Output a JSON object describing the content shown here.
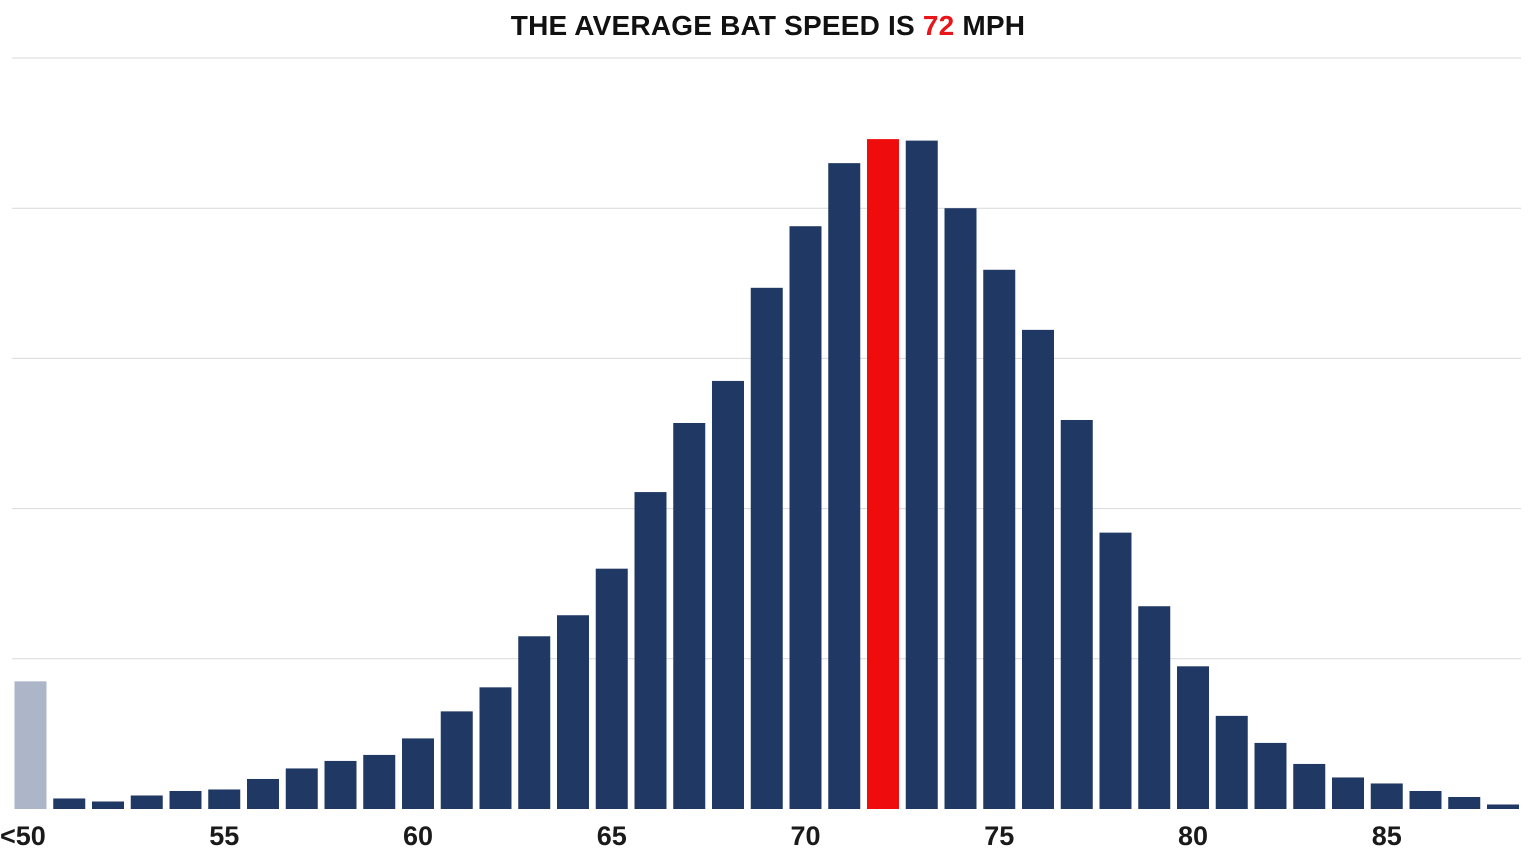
{
  "title": {
    "prefix": "THE AVERAGE BAT SPEED IS ",
    "highlight": "72",
    "suffix": " MPH"
  },
  "colors": {
    "bar": "#203864",
    "highlight": "#ee0c0c",
    "under50": "#adb6c9",
    "grid": "#d9d9d9"
  },
  "chart_data": {
    "type": "bar",
    "title": "THE AVERAGE BAT SPEED IS 72 MPH",
    "xlabel": "",
    "ylabel": "",
    "grid": true,
    "highlight_category": "72",
    "categories": [
      "<50",
      "51",
      "52",
      "53",
      "54",
      "55",
      "56",
      "57",
      "58",
      "59",
      "60",
      "61",
      "62",
      "63",
      "64",
      "65",
      "66",
      "67",
      "68",
      "69",
      "70",
      "71",
      "72",
      "73",
      "74",
      "75",
      "76",
      "77",
      "78",
      "79",
      "80",
      "81",
      "82",
      "83",
      "84",
      "85",
      "86",
      "87",
      "88"
    ],
    "values": [
      0.85,
      0.07,
      0.05,
      0.09,
      0.12,
      0.13,
      0.2,
      0.27,
      0.32,
      0.36,
      0.47,
      0.65,
      0.81,
      1.15,
      1.29,
      1.6,
      2.11,
      2.57,
      2.85,
      3.47,
      3.88,
      4.3,
      4.46,
      4.45,
      4.0,
      3.59,
      3.19,
      2.59,
      1.84,
      1.35,
      0.95,
      0.62,
      0.44,
      0.3,
      0.21,
      0.17,
      0.12,
      0.08,
      0.03
    ],
    "ylim": [
      0,
      5
    ],
    "tick_labels": [
      "<50",
      "55",
      "60",
      "65",
      "70",
      "75",
      "80",
      "85"
    ],
    "tick_categories": [
      "<50",
      "55",
      "60",
      "65",
      "70",
      "75",
      "80",
      "85"
    ]
  }
}
